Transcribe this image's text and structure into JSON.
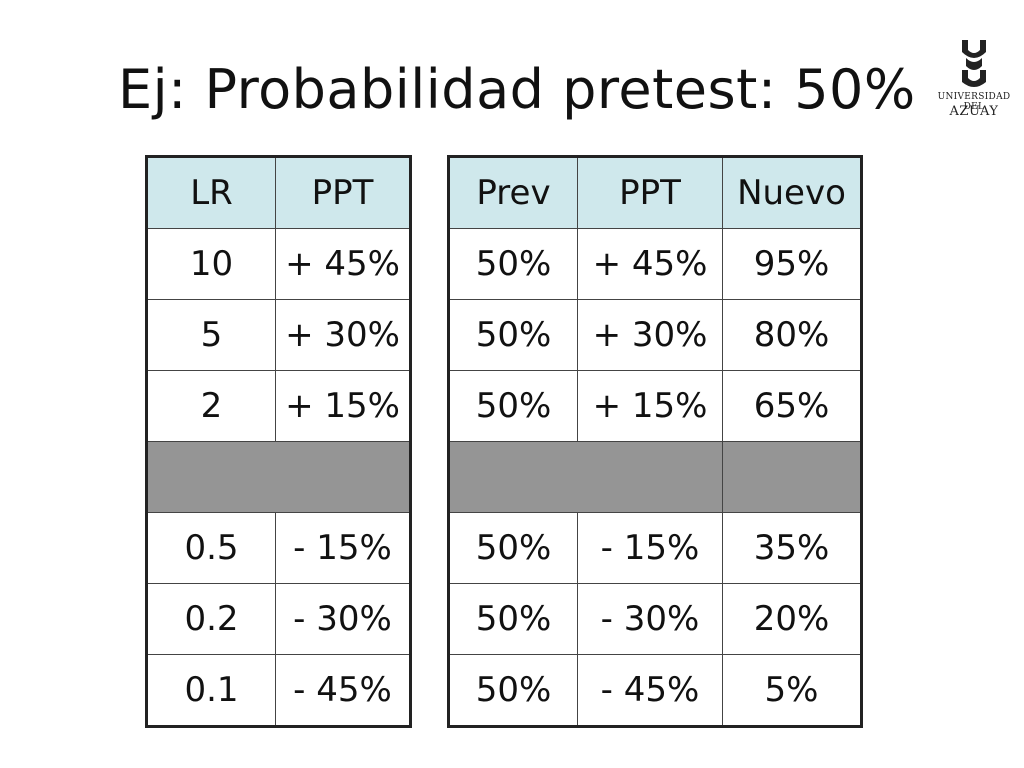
{
  "slide": {
    "title": "Ej: Probabilidad pretest: 50%"
  },
  "logo": {
    "line1": "UNIVERSIDAD DEL",
    "line2": "AZUAY"
  },
  "lr_table": {
    "headers": [
      "LR",
      "PPT"
    ],
    "rows_top": [
      [
        "10",
        "+ 45%"
      ],
      [
        "5",
        "+ 30%"
      ],
      [
        "2",
        "+ 15%"
      ]
    ],
    "rows_bottom": [
      [
        "0.5",
        "- 15%"
      ],
      [
        "0.2",
        "- 30%"
      ],
      [
        "0.1",
        "- 45%"
      ]
    ]
  },
  "prev_table": {
    "headers": [
      "Prev",
      "PPT",
      "Nuevo"
    ],
    "rows_top": [
      [
        "50%",
        "+ 45%",
        "95%"
      ],
      [
        "50%",
        "+ 30%",
        "80%"
      ],
      [
        "50%",
        "+ 15%",
        "65%"
      ]
    ],
    "rows_bottom": [
      [
        "50%",
        "- 15%",
        "35%"
      ],
      [
        "50%",
        "- 30%",
        "20%"
      ],
      [
        "50%",
        "- 45%",
        "5%"
      ]
    ]
  },
  "colors": {
    "header_fill": "#cfe8ec",
    "separator_fill": "#959595"
  }
}
